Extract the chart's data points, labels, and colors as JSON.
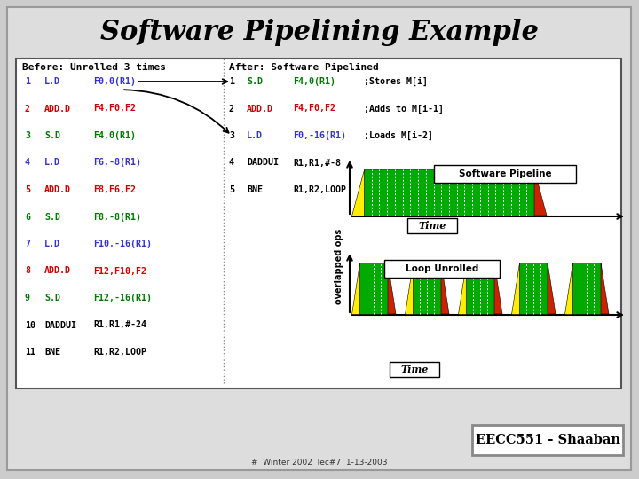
{
  "title": "Software Pipelining Example",
  "title_fontsize": 22,
  "bg_color": "#cccccc",
  "slide_bg": "#dddddd",
  "inner_bg": "#ffffff",
  "before_header": "Before: Unrolled 3 times",
  "after_header": "After: Software Pipelined",
  "before_lines": [
    [
      "1",
      "L.D",
      "F0,0(R1)"
    ],
    [
      "2",
      "ADD.D",
      "F4,F0,F2"
    ],
    [
      "3",
      "S.D",
      "F4,0(R1)"
    ],
    [
      "4",
      "L.D",
      "F6,-8(R1)"
    ],
    [
      "5",
      "ADD.D",
      "F8,F6,F2"
    ],
    [
      "6",
      "S.D",
      "F8,-8(R1)"
    ],
    [
      "7",
      "L.D",
      "F10,-16(R1)"
    ],
    [
      "8",
      "ADD.D",
      "F12,F10,F2"
    ],
    [
      "9",
      "S.D",
      "F12,-16(R1)"
    ],
    [
      "10",
      "DADDUI",
      "R1,R1,#-24"
    ],
    [
      "11",
      "BNE",
      "R1,R2,LOOP"
    ]
  ],
  "before_colors": [
    [
      "blue",
      "blue",
      "blue"
    ],
    [
      "red",
      "red",
      "red"
    ],
    [
      "green",
      "green",
      "green"
    ],
    [
      "blue",
      "blue",
      "blue"
    ],
    [
      "red",
      "red",
      "red"
    ],
    [
      "green",
      "green",
      "green"
    ],
    [
      "blue",
      "blue",
      "blue"
    ],
    [
      "red",
      "red",
      "red"
    ],
    [
      "green",
      "green",
      "green"
    ],
    [
      "black",
      "black",
      "black"
    ],
    [
      "black",
      "black",
      "black"
    ]
  ],
  "after_lines": [
    [
      "1",
      "S.D",
      "F4,0(R1)",
      ";Stores M[i]"
    ],
    [
      "2",
      "ADD.D",
      "F4,F0,F2",
      ";Adds to M[i-1]"
    ],
    [
      "3",
      "L.D",
      "F0,-16(R1)",
      ";Loads M[i-2]"
    ],
    [
      "4",
      "DADDUI",
      "R1,R1,#-8",
      ""
    ],
    [
      "5",
      "BNE",
      "R1,R2,LOOP",
      ""
    ]
  ],
  "after_colors": [
    [
      "black",
      "green",
      "green",
      "black"
    ],
    [
      "black",
      "red",
      "red",
      "black"
    ],
    [
      "black",
      "blue",
      "blue",
      "black"
    ],
    [
      "black",
      "black",
      "black",
      "black"
    ],
    [
      "black",
      "black",
      "black",
      "black"
    ]
  ],
  "footer_text": "EECC551 - Shaaban",
  "footer_sub": "#  Winter 2002  lec#7  1-13-2003",
  "color_blue": "#3333cc",
  "color_red": "#cc0000",
  "color_green": "#007700",
  "color_black": "#000000"
}
